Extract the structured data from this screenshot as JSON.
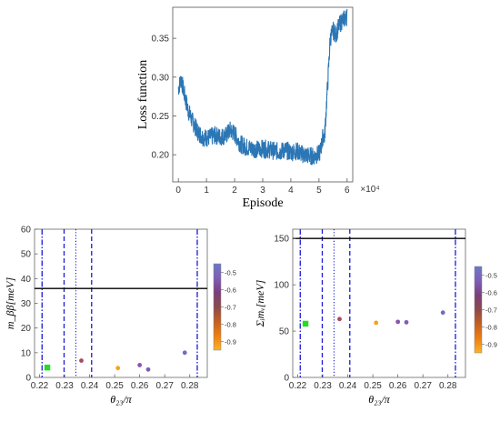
{
  "chart_data": [
    {
      "type": "line",
      "xlabel": "Episode",
      "ylabel": "Loss function",
      "x_multiplier_label": "×10⁴",
      "xlim": [
        -0.2,
        6.2
      ],
      "ylim": [
        0.165,
        0.39
      ],
      "x_ticks": [
        0,
        1,
        2,
        3,
        4,
        5,
        6
      ],
      "x_tick_labels": [
        "0",
        "1",
        "2",
        "3",
        "4",
        "5",
        "6"
      ],
      "y_ticks": [
        0.2,
        0.25,
        0.3,
        0.35
      ],
      "y_tick_labels": [
        "0.20",
        "0.25",
        "0.30",
        "0.35"
      ],
      "color": "#2b76b5",
      "series": [
        {
          "x": [
            0,
            0.1,
            0.2,
            0.35,
            0.5,
            0.7,
            0.9,
            1.1,
            1.3,
            1.5,
            1.7,
            1.85,
            2.0,
            2.2,
            2.4,
            2.6,
            2.8,
            3.0,
            3.2,
            3.4,
            3.6,
            3.8,
            4.0,
            4.2,
            4.4,
            4.6,
            4.8,
            5.0,
            5.05,
            5.1,
            5.15,
            5.2,
            5.3,
            5.4,
            5.5,
            5.6,
            5.7,
            5.8,
            5.9,
            6.0
          ],
          "values": [
            0.285,
            0.298,
            0.28,
            0.257,
            0.243,
            0.229,
            0.222,
            0.222,
            0.225,
            0.223,
            0.225,
            0.232,
            0.227,
            0.214,
            0.21,
            0.208,
            0.207,
            0.208,
            0.207,
            0.205,
            0.204,
            0.206,
            0.203,
            0.205,
            0.201,
            0.199,
            0.198,
            0.201,
            0.205,
            0.215,
            0.225,
            0.223,
            0.285,
            0.35,
            0.36,
            0.355,
            0.365,
            0.372,
            0.375,
            0.378
          ],
          "noise_amplitude": 0.012
        }
      ]
    },
    {
      "type": "scatter",
      "xlabel": "θ₂₃/π",
      "ylabel": "m_ββ[meV]",
      "xlim": [
        0.218,
        0.287
      ],
      "ylim": [
        0,
        60
      ],
      "x_ticks": [
        0.22,
        0.23,
        0.24,
        0.25,
        0.26,
        0.27,
        0.28
      ],
      "x_tick_labels": [
        "0.22",
        "0.23",
        "0.24",
        "0.25",
        "0.26",
        "0.27",
        "0.28"
      ],
      "y_ticks": [
        0,
        10,
        20,
        30,
        40,
        50,
        60
      ],
      "y_tick_labels": [
        "0",
        "10",
        "20",
        "30",
        "40",
        "50",
        "60"
      ],
      "horizontal_line": 36,
      "vertical_lines_dashdot": [
        0.221,
        0.283
      ],
      "vertical_lines_dashed": [
        0.2298,
        0.2408
      ],
      "vertical_lines_dotted": [
        0.2345
      ],
      "points": [
        {
          "x": 0.2367,
          "y": 6.8,
          "color": "#a84a60",
          "shape": "circle"
        },
        {
          "x": 0.2513,
          "y": 3.8,
          "color": "#f5a31c",
          "shape": "circle"
        },
        {
          "x": 0.26,
          "y": 5.0,
          "color": "#8a54b0",
          "shape": "circle"
        },
        {
          "x": 0.2634,
          "y": 3.2,
          "color": "#7d5fb5",
          "shape": "circle"
        },
        {
          "x": 0.278,
          "y": 10.0,
          "color": "#6f6dbf",
          "shape": "circle"
        },
        {
          "x": 0.2231,
          "y": 4.0,
          "color": "#22dd22",
          "shape": "square"
        }
      ],
      "colorbar": {
        "colors": [
          "#f9b327",
          "#ee7e11",
          "#c45f1f",
          "#8b4a4c",
          "#7a3f7a",
          "#7f5cb8",
          "#6b79c5"
        ],
        "ticks": [
          -0.9,
          -0.8,
          -0.7,
          -0.6,
          -0.5
        ],
        "tick_labels": [
          "-0.9",
          "-0.8",
          "-0.7",
          "-0.6",
          "-0.5"
        ],
        "range": [
          -0.95,
          -0.45
        ]
      }
    },
    {
      "type": "scatter",
      "xlabel": "θ₂₃/π",
      "ylabel": "Σᵢmᵥ[meV]",
      "xlim": [
        0.218,
        0.287
      ],
      "ylim": [
        0,
        160
      ],
      "x_ticks": [
        0.22,
        0.23,
        0.24,
        0.25,
        0.26,
        0.27,
        0.28
      ],
      "x_tick_labels": [
        "0.22",
        "0.23",
        "0.24",
        "0.25",
        "0.26",
        "0.27",
        "0.28"
      ],
      "y_ticks": [
        0,
        50,
        100,
        150
      ],
      "y_tick_labels": [
        "0",
        "50",
        "100",
        "150"
      ],
      "horizontal_line": 150,
      "vertical_lines_dashdot": [
        0.221,
        0.283
      ],
      "vertical_lines_dashed": [
        0.2298,
        0.2408
      ],
      "vertical_lines_dotted": [
        0.2345
      ],
      "points": [
        {
          "x": 0.2367,
          "y": 63.0,
          "color": "#a84a60",
          "shape": "circle"
        },
        {
          "x": 0.2513,
          "y": 59.0,
          "color": "#f5a31c",
          "shape": "circle"
        },
        {
          "x": 0.26,
          "y": 60.0,
          "color": "#8a54b0",
          "shape": "circle"
        },
        {
          "x": 0.2634,
          "y": 59.5,
          "color": "#7d5fb5",
          "shape": "circle"
        },
        {
          "x": 0.278,
          "y": 70.0,
          "color": "#6f6dbf",
          "shape": "circle"
        },
        {
          "x": 0.2231,
          "y": 58.0,
          "color": "#22dd22",
          "shape": "square"
        }
      ],
      "colorbar": {
        "colors": [
          "#f9b327",
          "#ee7e11",
          "#c45f1f",
          "#8b4a4c",
          "#7a3f7a",
          "#7f5cb8",
          "#6b79c5"
        ],
        "ticks": [
          -0.9,
          -0.8,
          -0.7,
          -0.6,
          -0.5
        ],
        "tick_labels": [
          "-0.9",
          "-0.8",
          "-0.7",
          "-0.6",
          "-0.5"
        ],
        "range": [
          -0.95,
          -0.45
        ]
      }
    }
  ]
}
